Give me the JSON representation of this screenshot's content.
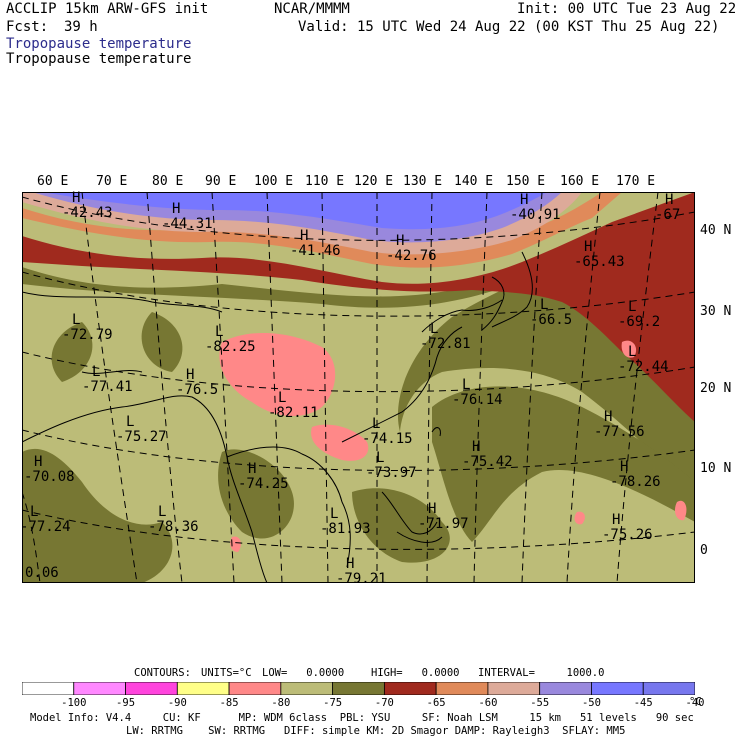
{
  "header": {
    "model": "ACCLIP 15km ARW-GFS init",
    "org": "NCAR/MMMM",
    "init": "Init: 00 UTC Tue 23 Aug 22",
    "fcst_label": "Fcst:",
    "fcst_value": "39 h",
    "valid": "Valid: 15 UTC Wed 24 Aug 22 (00 KST Thu 25 Aug 22)",
    "field_title_1": "Tropopause temperature",
    "field_title_2": "Tropopause temperature"
  },
  "map": {
    "longitude_labels": [
      "60 E",
      "70 E",
      "80 E",
      "90 E",
      "100 E",
      "110 E",
      "120 E",
      "130 E",
      "140 E",
      "150 E",
      "160 E",
      "170 E"
    ],
    "latitude_labels": [
      "40 N",
      "30 N",
      "20 N",
      "10 N",
      "0"
    ],
    "corner_value": "0.06",
    "highs_lows": [
      {
        "type": "H",
        "value": "-42.43"
      },
      {
        "type": "H",
        "value": "-44.31"
      },
      {
        "type": "H",
        "value": "-41.46"
      },
      {
        "type": "H",
        "value": "-42.76"
      },
      {
        "type": "H",
        "value": "-40.91"
      },
      {
        "type": "H",
        "value": "-67"
      },
      {
        "type": "H",
        "value": "-65.43"
      },
      {
        "type": "L",
        "value": "-66.5"
      },
      {
        "type": "L",
        "value": "-69.2"
      },
      {
        "type": "L",
        "value": "-72.44"
      },
      {
        "type": "L",
        "value": "-72.79"
      },
      {
        "type": "L",
        "value": "-82.25"
      },
      {
        "type": "L",
        "value": "-77.41"
      },
      {
        "type": "H",
        "value": "-76.5"
      },
      {
        "type": "L",
        "value": "-82.11"
      },
      {
        "type": "L",
        "value": "-72.81"
      },
      {
        "type": "L",
        "value": "-76.14"
      },
      {
        "type": "L",
        "value": "-75.27"
      },
      {
        "type": "L",
        "value": "-74.15"
      },
      {
        "type": "H",
        "value": "-77.56"
      },
      {
        "type": "H",
        "value": "-75.42"
      },
      {
        "type": "L",
        "value": "-73.97"
      },
      {
        "type": "H",
        "value": "-70.08"
      },
      {
        "type": "H",
        "value": "-74.25"
      },
      {
        "type": "H",
        "value": "-78.26"
      },
      {
        "type": "L",
        "value": "-77.24"
      },
      {
        "type": "L",
        "value": "-78.36"
      },
      {
        "type": "L",
        "value": "-81.93"
      },
      {
        "type": "H",
        "value": "-71.97"
      },
      {
        "type": "H",
        "value": "-75.26"
      },
      {
        "type": "H",
        "value": "-79.21"
      }
    ]
  },
  "contour_info": {
    "contours_label": "CONTOURS:",
    "units": "UNITS=°C",
    "low": "LOW=   0.0000",
    "high": "HIGH=   0.0000",
    "interval": "INTERVAL=     1000.0"
  },
  "colorbar": {
    "unit": "°C",
    "colors": [
      "#ffffff",
      "#ff88ff",
      "#ff44dd",
      "#ffff88",
      "#ff8888",
      "#bcbc78",
      "#777733",
      "#a02a1e",
      "#e08a5a",
      "#ddaa99",
      "#9988dd",
      "#7777ff",
      "#7777ee"
    ],
    "labels": [
      "-100",
      "-95",
      "-90",
      "-85",
      "-80",
      "-75",
      "-70",
      "-65",
      "-60",
      "-55",
      "-50",
      "-45",
      "-40"
    ]
  },
  "footer": {
    "line1": "Model Info: V4.4     CU: KF      MP: WDM 6class  PBL: YSU     SF: Noah LSM     15 km   51 levels   90 sec",
    "line2": "LW: RRTMG    SW: RRTMG   DIFF: simple KM: 2D Smagor DAMP: Rayleigh3  SFLAY: MM5"
  }
}
